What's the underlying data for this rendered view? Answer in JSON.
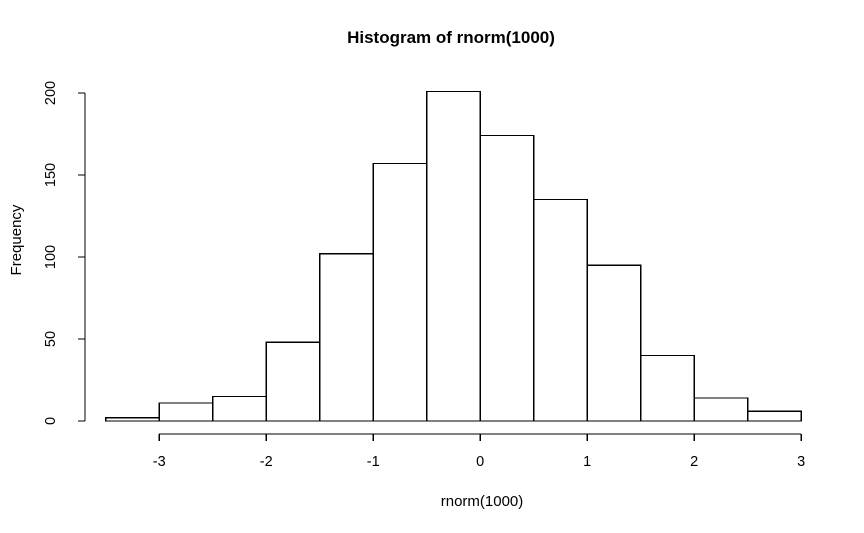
{
  "figure": {
    "background": "#ffffff",
    "line_color": "#000000",
    "bar_fill": "#ffffff",
    "text_color": "#000000"
  },
  "chart_data": {
    "type": "bar",
    "subtype": "histogram",
    "title": "Histogram of rnorm(1000)",
    "xlabel": "rnorm(1000)",
    "ylabel": "Frequency",
    "bin_breaks": [
      -3.5,
      -3.0,
      -2.5,
      -2.0,
      -1.5,
      -1.0,
      -0.5,
      0.0,
      0.5,
      1.0,
      1.5,
      2.0,
      2.5,
      3.0
    ],
    "counts": [
      2,
      11,
      15,
      48,
      102,
      157,
      201,
      174,
      135,
      95,
      40,
      14,
      6
    ],
    "total_n": 1000,
    "x_ticks": [
      "-3",
      "-2",
      "-1",
      "0",
      "1",
      "2",
      "3"
    ],
    "x_tick_values": [
      -3,
      -2,
      -1,
      0,
      1,
      2,
      3
    ],
    "y_ticks": [
      "0",
      "50",
      "100",
      "150",
      "200"
    ],
    "y_tick_values": [
      0,
      50,
      100,
      150,
      200
    ],
    "xlim": [
      -3.5,
      3.0
    ],
    "ylim": [
      0,
      200
    ],
    "grid": false,
    "legend_position": "none",
    "bar_orientation": "vertical"
  }
}
